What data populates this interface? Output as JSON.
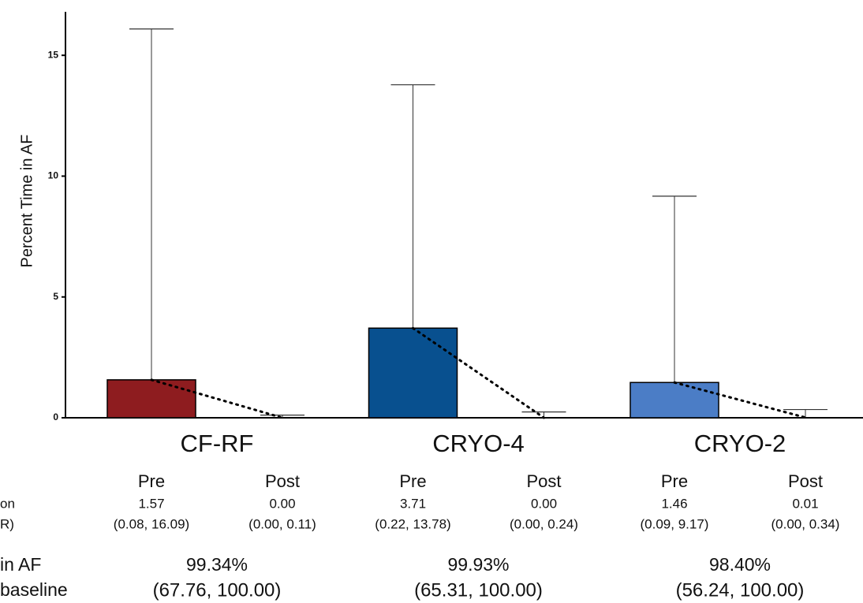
{
  "chart_data": {
    "type": "bar",
    "y_label": "Percent Time in AF",
    "ylim": [
      0,
      16.8
    ],
    "yticks": [
      0,
      5,
      10,
      15
    ],
    "categories": [
      "CF-RF",
      "CRYO-4",
      "CRYO-2"
    ],
    "colors": [
      "#8e1c1f",
      "#08508f",
      "#4b7dc6"
    ],
    "series": [
      {
        "name": "Pre",
        "values": [
          1.57,
          3.71,
          1.46
        ],
        "value_labels": [
          "1.57",
          "3.71",
          "1.46"
        ],
        "iqr": [
          [
            0.08,
            16.09
          ],
          [
            0.22,
            13.78
          ],
          [
            0.09,
            9.17
          ]
        ],
        "iqr_labels": [
          "(0.08, 16.09)",
          "(0.22, 13.78)",
          "(0.09, 9.17)"
        ]
      },
      {
        "name": "Post",
        "values": [
          0,
          0,
          0.01
        ],
        "value_labels": [
          "0.00",
          "0.00",
          "0.01"
        ],
        "iqr": [
          [
            0,
            0.11
          ],
          [
            0,
            0.24
          ],
          [
            0,
            0.34
          ]
        ],
        "iqr_labels": [
          "(0.00, 0.11)",
          "(0.00, 0.24)",
          "(0.00, 0.34)"
        ]
      }
    ],
    "row_labels": [
      "on",
      "R)"
    ],
    "reduction_labels": [
      "in AF",
      "baseline"
    ],
    "reduction": [
      99.34,
      99.93,
      98.4
    ],
    "reduction_value_labels": [
      "99.34%",
      "99.93%",
      "98.40%"
    ],
    "reduction_ci_labels": [
      "(67.76, 100.00)",
      "(65.31, 100.00)",
      "(56.24, 100.00)"
    ]
  }
}
